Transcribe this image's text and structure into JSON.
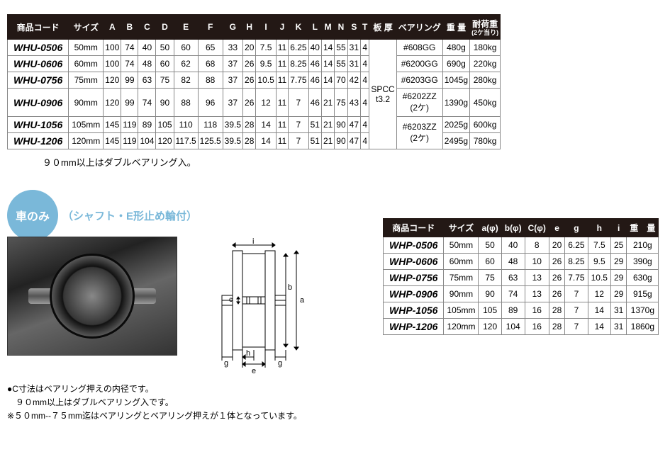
{
  "table1": {
    "headers": [
      "商品コード",
      "サイズ",
      "A",
      "B",
      "C",
      "D",
      "E",
      "F",
      "G",
      "H",
      "I",
      "J",
      "K",
      "L",
      "M",
      "N",
      "S",
      "T",
      "板 厚",
      "ベアリング",
      "重 量",
      "耐荷重"
    ],
    "header_sub": {
      "21": "(2ケ当り)"
    },
    "plate_thickness": "SPCC\nt3.2",
    "rows": [
      {
        "code": "WHU-0506",
        "size": "50mm",
        "v": [
          "100",
          "74",
          "40",
          "50",
          "60",
          "65",
          "33",
          "20",
          "7.5",
          "11",
          "6.25",
          "40",
          "14",
          "55",
          "31",
          "4"
        ],
        "bearing": "#608GG",
        "weight": "480g",
        "load": "180kg"
      },
      {
        "code": "WHU-0606",
        "size": "60mm",
        "v": [
          "100",
          "74",
          "48",
          "60",
          "62",
          "68",
          "37",
          "26",
          "9.5",
          "11",
          "8.25",
          "46",
          "14",
          "55",
          "31",
          "4"
        ],
        "bearing": "#6200GG",
        "weight": "690g",
        "load": "220kg"
      },
      {
        "code": "WHU-0756",
        "size": "75mm",
        "v": [
          "120",
          "99",
          "63",
          "75",
          "82",
          "88",
          "37",
          "26",
          "10.5",
          "11",
          "7.75",
          "46",
          "14",
          "70",
          "42",
          "4"
        ],
        "bearing": "#6203GG",
        "weight": "1045g",
        "load": "280kg"
      },
      {
        "code": "WHU-0906",
        "size": "90mm",
        "v": [
          "120",
          "99",
          "74",
          "90",
          "88",
          "96",
          "37",
          "26",
          "12",
          "11",
          "7",
          "46",
          "21",
          "75",
          "43",
          "4"
        ],
        "bearing": "#6202ZZ\n(2ケ)",
        "weight": "1390g",
        "load": "450kg"
      },
      {
        "code": "WHU-1056",
        "size": "105mm",
        "v": [
          "145",
          "119",
          "89",
          "105",
          "110",
          "118",
          "39.5",
          "28",
          "14",
          "11",
          "7",
          "51",
          "21",
          "90",
          "47",
          "4"
        ],
        "bearing": "#6203ZZ\n(2ケ)",
        "weight": "2025g",
        "load": "600kg"
      },
      {
        "code": "WHU-1206",
        "size": "120mm",
        "v": [
          "145",
          "119",
          "104",
          "120",
          "117.5",
          "125.5",
          "39.5",
          "28",
          "14",
          "11",
          "7",
          "51",
          "21",
          "90",
          "47",
          "4"
        ],
        "bearing": "",
        "weight": "2495g",
        "load": "780kg"
      }
    ],
    "bearing_spans": [
      1,
      1,
      1,
      1,
      2
    ]
  },
  "note1": "９０mm以上はダブルベアリング入。",
  "badge": "車のみ",
  "subtitle": "（シャフト・E形止め輪付）",
  "notes2": [
    "●C寸法はベアリング押えの内径です。",
    "　９０mm以上はダブルベアリング入です。",
    "※５０mm--７５mm迄はベアリングとベアリング押えが１体となっています。"
  ],
  "table2": {
    "headers": [
      "商品コード",
      "サイズ",
      "a(φ)",
      "b(φ)",
      "C(φ)",
      "e",
      "g",
      "h",
      "i",
      "重　量"
    ],
    "rows": [
      {
        "code": "WHP-0506",
        "size": "50mm",
        "v": [
          "50",
          "40",
          "8",
          "20",
          "6.25",
          "7.5",
          "25"
        ],
        "weight": "210g"
      },
      {
        "code": "WHP-0606",
        "size": "60mm",
        "v": [
          "60",
          "48",
          "10",
          "26",
          "8.25",
          "9.5",
          "29"
        ],
        "weight": "390g"
      },
      {
        "code": "WHP-0756",
        "size": "75mm",
        "v": [
          "75",
          "63",
          "13",
          "26",
          "7.75",
          "10.5",
          "29"
        ],
        "weight": "630g"
      },
      {
        "code": "WHP-0906",
        "size": "90mm",
        "v": [
          "90",
          "74",
          "13",
          "26",
          "7",
          "12",
          "29"
        ],
        "weight": "915g"
      },
      {
        "code": "WHP-1056",
        "size": "105mm",
        "v": [
          "105",
          "89",
          "16",
          "28",
          "7",
          "14",
          "31"
        ],
        "weight": "1370g"
      },
      {
        "code": "WHP-1206",
        "size": "120mm",
        "v": [
          "120",
          "104",
          "16",
          "28",
          "7",
          "14",
          "31"
        ],
        "weight": "1860g"
      }
    ]
  },
  "diagram_labels": {
    "a": "a",
    "b": "b",
    "c": "c",
    "e": "e",
    "g1": "g",
    "g2": "g",
    "h": "h",
    "i": "i"
  }
}
